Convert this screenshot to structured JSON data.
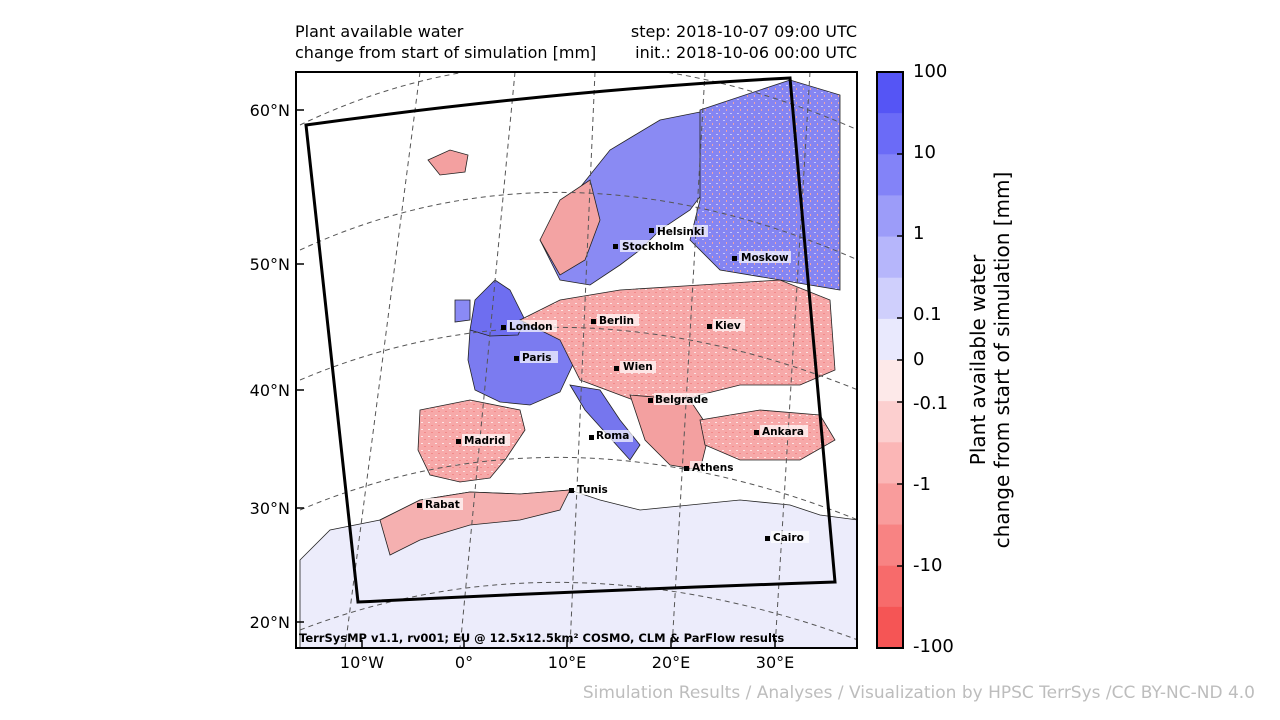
{
  "header": {
    "left_line1": "Plant available water",
    "left_line2": "change from start of simulation [mm]",
    "right_line1": "step: 2018-10-07 09:00 UTC",
    "right_line2": "init.: 2018-10-06 00:00 UTC"
  },
  "map": {
    "lat_labels": [
      "60°N",
      "50°N",
      "40°N",
      "30°N",
      "20°N"
    ],
    "lon_labels": [
      "10°W",
      "0°",
      "10°E",
      "20°E",
      "30°E"
    ],
    "cities": [
      {
        "name": "Helsinki"
      },
      {
        "name": "Stockholm"
      },
      {
        "name": "Moskow"
      },
      {
        "name": "London"
      },
      {
        "name": "Berlin"
      },
      {
        "name": "Kiev"
      },
      {
        "name": "Paris"
      },
      {
        "name": "Wien"
      },
      {
        "name": "Belgrade"
      },
      {
        "name": "Madrid"
      },
      {
        "name": "Roma"
      },
      {
        "name": "Ankara"
      },
      {
        "name": "Athens"
      },
      {
        "name": "Tunis"
      },
      {
        "name": "Rabat"
      },
      {
        "name": "Cairo"
      }
    ],
    "credit": "TerrSysMP v1.1, rv001; EU @ 12.5x12.5km² COSMO, CLM & ParFlow results"
  },
  "colorbar": {
    "title_line1": "Plant available water",
    "title_line2": "change from start of simulation [mm]",
    "tick_labels": [
      "100",
      "10",
      "1",
      "0.1",
      "0",
      "-0.1",
      "-1",
      "-10",
      "-100"
    ],
    "colors": [
      "#5555f5",
      "#6b6bf7",
      "#8383f8",
      "#9c9cf9",
      "#b6b6fb",
      "#cfcffc",
      "#e9e9fd",
      "#fde9e9",
      "#fccfcf",
      "#fbb6b6",
      "#f99c9c",
      "#f88383",
      "#f76b6b",
      "#f55555"
    ]
  },
  "footer": "Simulation Results / Analyses / Visualization by HPSC TerrSys /CC BY-NC-ND 4.0"
}
